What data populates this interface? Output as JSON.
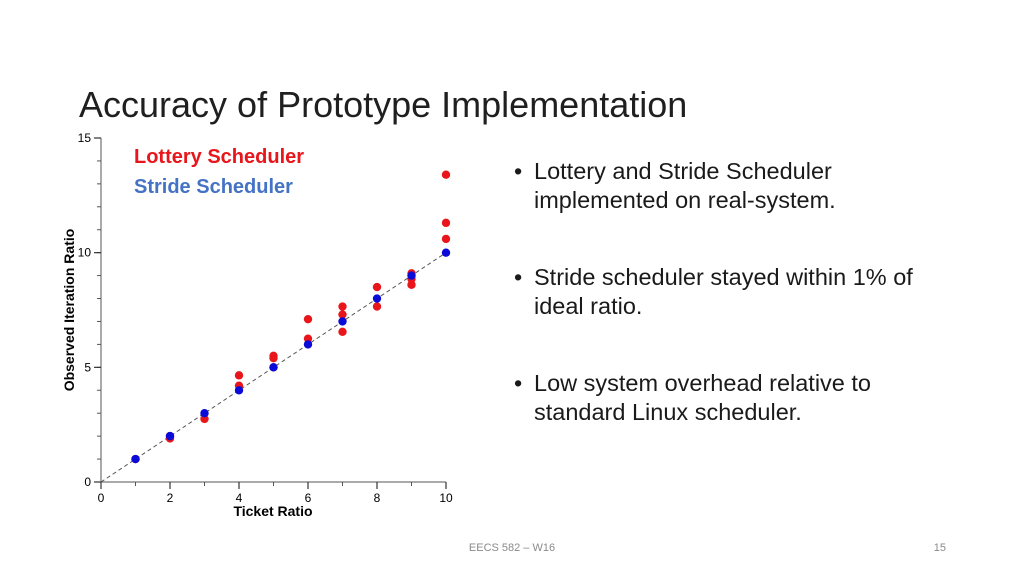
{
  "slide": {
    "title": "Accuracy of Prototype Implementation",
    "bullets": [
      "Lottery and Stride Scheduler implemented on real-system.",
      "Stride scheduler stayed within 1% of ideal ratio.",
      "Low system overhead relative to standard Linux scheduler."
    ],
    "bullet_glyph": "•",
    "footer": "EECS 582 – W16",
    "page_number": "15"
  },
  "colors": {
    "lottery": "#e8161b",
    "stride": "#0b0bd8",
    "lottery_legend": "#e8161b",
    "stride_legend": "#4472c4"
  },
  "chart_data": {
    "type": "scatter",
    "xlabel": "Ticket Ratio",
    "ylabel": "Observed Iteration Ratio",
    "xlim": [
      0,
      10
    ],
    "ylim": [
      0,
      15
    ],
    "xticks": [
      "0",
      "2",
      "4",
      "6",
      "8",
      "10"
    ],
    "yticks": [
      "0",
      "5",
      "10",
      "15"
    ],
    "reference_line": {
      "style": "dashed",
      "from": [
        0,
        0
      ],
      "to": [
        10,
        10
      ]
    },
    "legend_position": "top-left",
    "series": [
      {
        "name": "Lottery Scheduler",
        "points": [
          [
            1,
            1.0
          ],
          [
            2,
            1.9
          ],
          [
            2,
            2.0
          ],
          [
            3,
            2.75
          ],
          [
            4,
            4.2
          ],
          [
            4,
            4.65
          ],
          [
            5,
            5.0
          ],
          [
            5,
            5.4
          ],
          [
            5,
            5.5
          ],
          [
            6,
            6.25
          ],
          [
            6,
            7.1
          ],
          [
            7,
            6.55
          ],
          [
            7,
            7.3
          ],
          [
            7,
            7.65
          ],
          [
            8,
            7.65
          ],
          [
            8,
            8.5
          ],
          [
            9,
            8.6
          ],
          [
            9,
            8.85
          ],
          [
            9,
            9.1
          ],
          [
            10,
            10.6
          ],
          [
            10,
            11.3
          ],
          [
            10,
            13.4
          ]
        ]
      },
      {
        "name": "Stride Scheduler",
        "points": [
          [
            1,
            1.0
          ],
          [
            2,
            2.0
          ],
          [
            3,
            3.0
          ],
          [
            4,
            4.0
          ],
          [
            5,
            5.0
          ],
          [
            6,
            6.0
          ],
          [
            7,
            7.0
          ],
          [
            8,
            8.0
          ],
          [
            9,
            9.0
          ],
          [
            10,
            10.0
          ]
        ]
      }
    ]
  }
}
